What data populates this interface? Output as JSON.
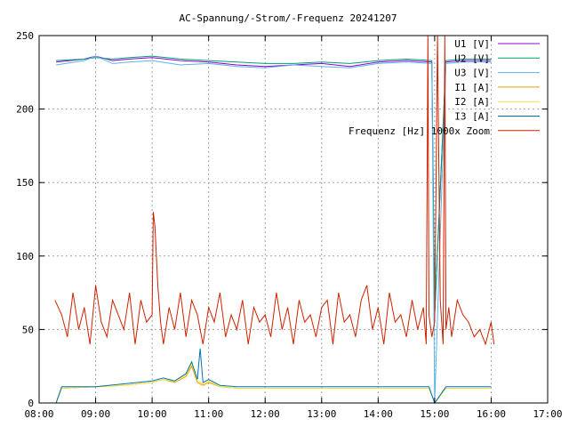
{
  "chart_data": {
    "type": "line",
    "title": "AC-Spannung/-Strom/-Frequenz 20241207",
    "xlabel": "",
    "ylabel": "",
    "x_ticks": [
      "08:00",
      "09:00",
      "10:00",
      "11:00",
      "12:00",
      "13:00",
      "14:00",
      "15:00",
      "16:00",
      "17:00"
    ],
    "xlim_hours": [
      8,
      17
    ],
    "y_ticks": [
      0,
      50,
      100,
      150,
      200,
      250
    ],
    "ylim": [
      0,
      250
    ],
    "grid": true,
    "legend_position": "top-right",
    "series": [
      {
        "name": "U1 [V]",
        "color": "#9400d3",
        "x": [
          8.3,
          8.8,
          9.0,
          9.3,
          9.6,
          10.0,
          10.5,
          11.0,
          11.5,
          12.0,
          12.5,
          13.0,
          13.5,
          14.0,
          14.5,
          14.95,
          15.0,
          15.2,
          15.5,
          16.0
        ],
        "values": [
          232,
          234,
          236,
          233,
          234,
          235,
          233,
          232,
          230,
          229,
          230,
          231,
          229,
          232,
          233,
          232,
          60,
          232,
          233,
          233
        ]
      },
      {
        "name": "U2 [V]",
        "color": "#009e73",
        "x": [
          8.3,
          8.8,
          9.0,
          9.3,
          9.6,
          10.0,
          10.5,
          11.0,
          11.5,
          12.0,
          12.5,
          13.0,
          13.5,
          14.0,
          14.5,
          14.95,
          15.0,
          15.2,
          15.5,
          16.0
        ],
        "values": [
          233,
          234,
          235,
          234,
          235,
          236,
          234,
          233,
          232,
          231,
          231,
          232,
          231,
          233,
          234,
          233,
          60,
          233,
          234,
          234
        ]
      },
      {
        "name": "U3 [V]",
        "color": "#56b4e9",
        "x": [
          8.3,
          8.8,
          9.0,
          9.3,
          9.6,
          10.0,
          10.5,
          11.0,
          11.5,
          12.0,
          12.5,
          13.0,
          13.5,
          14.0,
          14.5,
          14.95,
          15.0,
          15.2,
          15.5,
          16.0
        ],
        "values": [
          230,
          233,
          236,
          231,
          232,
          233,
          230,
          231,
          229,
          228,
          230,
          229,
          228,
          231,
          232,
          231,
          0,
          231,
          232,
          232
        ]
      },
      {
        "name": "I1 [A]",
        "color": "#e69f00",
        "x": [
          8.3,
          8.4,
          9.0,
          9.5,
          10.0,
          10.2,
          10.4,
          10.6,
          10.7,
          10.8,
          10.9,
          11.0,
          11.2,
          11.5,
          12.0,
          13.0,
          14.0,
          14.9,
          15.0,
          15.2,
          15.5,
          16.0
        ],
        "values": [
          0,
          10,
          11,
          12,
          14,
          16,
          14,
          18,
          25,
          14,
          12,
          14,
          11,
          10,
          10,
          10,
          10,
          10,
          0,
          10,
          10,
          10
        ]
      },
      {
        "name": "I2 [A]",
        "color": "#f0e442",
        "x": [
          8.3,
          8.4,
          9.0,
          9.5,
          10.0,
          10.2,
          10.4,
          10.6,
          10.7,
          10.8,
          10.9,
          11.0,
          11.2,
          11.5,
          12.0,
          13.0,
          14.0,
          14.9,
          15.0,
          15.2,
          15.5,
          16.0
        ],
        "values": [
          0,
          10,
          11,
          12,
          14,
          16,
          15,
          19,
          27,
          15,
          13,
          15,
          11,
          10,
          10,
          10,
          10,
          10,
          0,
          10,
          10,
          10
        ]
      },
      {
        "name": "I3 [A]",
        "color": "#0072b2",
        "x": [
          8.3,
          8.4,
          9.0,
          9.5,
          10.0,
          10.2,
          10.4,
          10.6,
          10.7,
          10.8,
          10.85,
          10.9,
          11.0,
          11.2,
          11.5,
          12.0,
          13.0,
          14.0,
          14.9,
          15.0,
          15.2,
          15.5,
          16.0
        ],
        "values": [
          0,
          11,
          11,
          13,
          15,
          17,
          15,
          20,
          28,
          16,
          37,
          14,
          16,
          12,
          11,
          11,
          11,
          11,
          11,
          0,
          11,
          11,
          11
        ]
      },
      {
        "name": "Frequenz [Hz] 1000x Zoom",
        "color": "#cc2200",
        "x": [
          8.28,
          8.4,
          8.5,
          8.6,
          8.7,
          8.8,
          8.9,
          9.0,
          9.1,
          9.2,
          9.3,
          9.4,
          9.5,
          9.6,
          9.7,
          9.8,
          9.9,
          10.0,
          10.02,
          10.05,
          10.1,
          10.15,
          10.2,
          10.3,
          10.4,
          10.5,
          10.6,
          10.7,
          10.8,
          10.9,
          11.0,
          11.1,
          11.2,
          11.3,
          11.4,
          11.5,
          11.6,
          11.7,
          11.8,
          11.9,
          12.0,
          12.1,
          12.2,
          12.3,
          12.4,
          12.5,
          12.6,
          12.7,
          12.8,
          12.9,
          13.0,
          13.1,
          13.2,
          13.3,
          13.4,
          13.5,
          13.6,
          13.7,
          13.8,
          13.9,
          14.0,
          14.1,
          14.2,
          14.3,
          14.4,
          14.5,
          14.6,
          14.7,
          14.8,
          14.85,
          14.88,
          14.9,
          14.95,
          15.0,
          15.05,
          15.1,
          15.15,
          15.18,
          15.2,
          15.25,
          15.3,
          15.4,
          15.5,
          15.6,
          15.7,
          15.8,
          15.9,
          16.0,
          16.05
        ],
        "values": [
          70,
          60,
          45,
          75,
          50,
          65,
          40,
          80,
          55,
          45,
          70,
          60,
          50,
          75,
          40,
          70,
          55,
          60,
          130,
          120,
          80,
          55,
          40,
          65,
          50,
          75,
          45,
          70,
          60,
          40,
          65,
          55,
          75,
          45,
          60,
          50,
          70,
          40,
          65,
          55,
          60,
          45,
          75,
          50,
          65,
          40,
          70,
          55,
          60,
          45,
          65,
          70,
          40,
          75,
          55,
          60,
          45,
          70,
          80,
          50,
          65,
          40,
          75,
          55,
          60,
          45,
          70,
          50,
          65,
          40,
          250,
          60,
          45,
          55,
          250,
          70,
          40,
          250,
          50,
          65,
          45,
          70,
          60,
          55,
          45,
          50,
          40,
          55,
          40
        ]
      }
    ]
  }
}
